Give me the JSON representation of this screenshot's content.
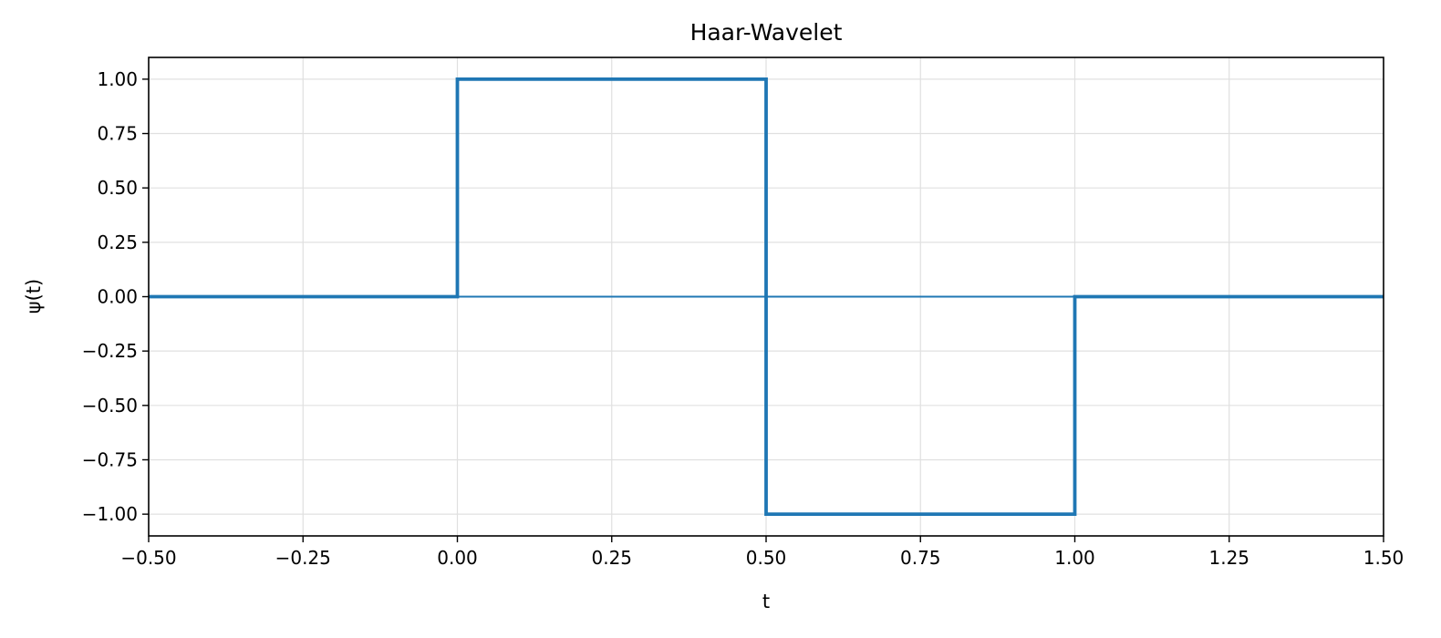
{
  "chart_data": {
    "type": "line",
    "title": "Haar-Wavelet",
    "xlabel": "t",
    "ylabel": "ψ(t)",
    "xlim": [
      -0.5,
      1.5
    ],
    "ylim": [
      -1.1,
      1.1
    ],
    "xticks": [
      -0.5,
      -0.25,
      0.0,
      0.25,
      0.5,
      0.75,
      1.0,
      1.25,
      1.5
    ],
    "yticks": [
      -1.0,
      -0.75,
      -0.5,
      -0.25,
      0.0,
      0.25,
      0.5,
      0.75,
      1.0
    ],
    "xtick_labels": [
      "−0.50",
      "−0.25",
      "0.00",
      "0.25",
      "0.50",
      "0.75",
      "1.00",
      "1.25",
      "1.50"
    ],
    "ytick_labels": [
      "−1.00",
      "−0.75",
      "−0.50",
      "−0.25",
      "0.00",
      "0.25",
      "0.50",
      "0.75",
      "1.00"
    ],
    "grid": true,
    "reference_line_y": 0,
    "series": [
      {
        "color": "#1f77b4",
        "x": [
          -0.5,
          0.0,
          0.0,
          0.5,
          0.5,
          1.0,
          1.0,
          1.5
        ],
        "y": [
          0,
          0,
          1,
          1,
          -1,
          -1,
          0,
          0
        ]
      }
    ]
  }
}
